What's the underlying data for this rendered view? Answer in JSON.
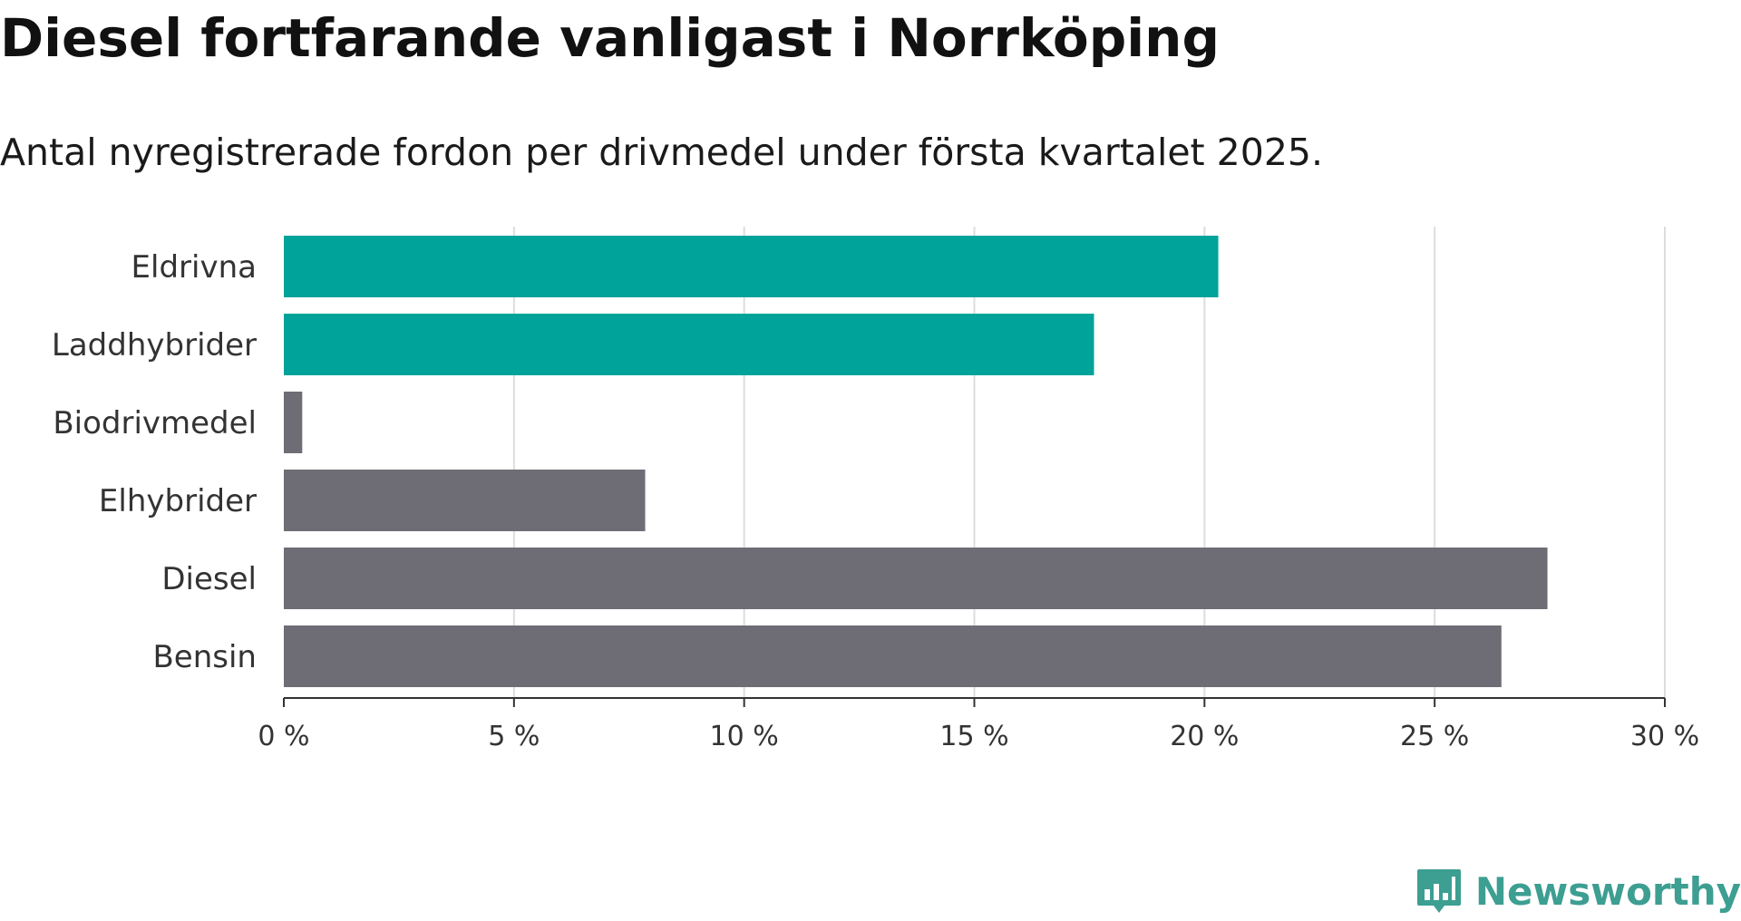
{
  "chart_data": {
    "type": "bar",
    "orientation": "horizontal",
    "title": "Diesel fortfarande vanligast i Norrköping",
    "subtitle": "Antal nyregistrerade fordon per drivmedel under första kvartalet 2025.",
    "categories": [
      "Eldrivna",
      "Laddhybrider",
      "Biodrivmedel",
      "Elhybrider",
      "Diesel",
      "Bensin"
    ],
    "values": [
      20.3,
      17.6,
      0.4,
      7.85,
      27.45,
      26.45
    ],
    "bar_colors": [
      "#00a39a",
      "#00a39a",
      "#6e6d75",
      "#6e6d75",
      "#6e6d75",
      "#6e6d75"
    ],
    "xlim": [
      0,
      30
    ],
    "xticks": [
      0,
      5,
      10,
      15,
      20,
      25,
      30
    ],
    "xtick_labels": [
      "0 %",
      "5 %",
      "10 %",
      "15 %",
      "20 %",
      "25 %",
      "30 %"
    ],
    "xlabel": "",
    "ylabel": "",
    "grid": true,
    "legend": "none"
  },
  "brand": {
    "name": "Newsworthy",
    "color": "#3d9e92",
    "icon": "newsworthy-logo-icon"
  }
}
